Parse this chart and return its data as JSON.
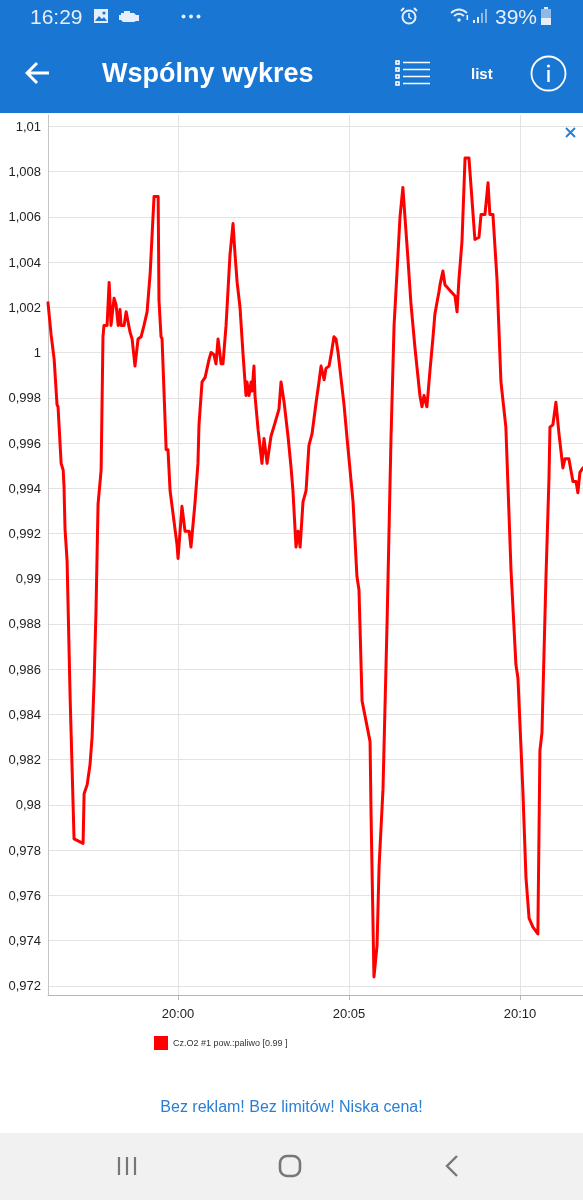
{
  "chart_data": {
    "type": "line",
    "title": "Wspólny wykres",
    "annotations": [
      "16:29",
      "39%",
      "list",
      "Bez reklam! Bez limitów! Niska cena!"
    ],
    "x": [
      19.9366,
      19.9381,
      19.9396,
      19.941,
      19.9415,
      19.943,
      19.944,
      19.9444,
      19.9449,
      19.9459,
      19.9474,
      19.9493,
      19.9537,
      19.9542,
      19.9557,
      19.9571,
      19.9581,
      19.9591,
      19.96,
      19.961,
      19.9625,
      19.9634,
      19.9639,
      19.9654,
      19.9664,
      19.9673,
      19.9688,
      19.9698,
      19.9708,
      19.9717,
      19.9722,
      19.9737,
      19.9747,
      19.9766,
      19.9776,
      19.979,
      19.9805,
      19.982,
      19.9834,
      19.9849,
      19.9864,
      19.9883,
      19.9903,
      19.9907,
      19.9917,
      19.9922,
      19.9942,
      19.9951,
      19.9961,
      19.9995,
      20.0,
      20.0019,
      20.0034,
      20.0054,
      20.0063,
      20.0083,
      20.0097,
      20.0102,
      20.0117,
      20.0132,
      20.0151,
      20.0161,
      20.0175,
      20.0185,
      20.0195,
      20.021,
      20.0219,
      20.0234,
      20.0253,
      20.0268,
      20.0278,
      20.0288,
      20.0302,
      20.0317,
      20.0331,
      20.0336,
      20.0346,
      20.0356,
      20.0361,
      20.037,
      20.0375,
      20.039,
      20.0409,
      20.0419,
      20.0434,
      20.0453,
      20.0473,
      20.0492,
      20.0502,
      20.0517,
      20.0536,
      20.0551,
      20.056,
      20.0575,
      20.0585,
      20.0595,
      20.0609,
      20.0624,
      20.0638,
      20.0653,
      20.0673,
      20.0687,
      20.0697,
      20.0712,
      20.0721,
      20.0736,
      20.0746,
      20.076,
      20.077,
      20.078,
      20.0809,
      20.0824,
      20.0853,
      20.0872,
      20.0882,
      20.0897,
      20.0936,
      20.0941,
      20.0955,
      20.097,
      20.098,
      20.0999,
      20.1019,
      20.1038,
      20.1053,
      20.1067,
      20.1082,
      20.1096,
      20.1106,
      20.1121,
      20.1135,
      20.1155,
      20.1179,
      20.1189,
      20.1199,
      20.1213,
      20.1228,
      20.1243,
      20.1252,
      20.1272,
      20.1277,
      20.1291,
      20.1301,
      20.133,
      20.135,
      20.136,
      20.1369,
      20.1384,
      20.1399,
      20.1418,
      20.1447,
      20.1467,
      20.1477,
      20.1496,
      20.1511,
      20.152,
      20.1535,
      20.1555,
      20.1574,
      20.1598,
      20.1623,
      20.1647,
      20.1657,
      20.1681,
      20.1696,
      20.1711,
      20.173,
      20.1754,
      20.1764,
      20.1774,
      20.1793,
      20.1808,
      20.1813,
      20.1827,
      20.1842,
      20.1857,
      20.1876,
      20.1886,
      20.1905,
      20.1925,
      20.194,
      20.1949,
      20.1959,
      20.1974
    ],
    "series": [
      {
        "name": "Cz.O2 #1 pow.:paliwo [0.99 ]",
        "color": "#ff0000",
        "values": [
          1.0022,
          1.0008,
          0.9997,
          0.9977,
          0.9976,
          0.9951,
          0.9948,
          0.9941,
          0.9922,
          0.9908,
          0.9847,
          0.9785,
          0.9783,
          0.9805,
          0.9809,
          0.9818,
          0.983,
          0.9855,
          0.9886,
          0.9933,
          0.9948,
          1.0007,
          1.0012,
          1.0012,
          1.0031,
          1.0012,
          1.0024,
          1.0021,
          1.0012,
          1.0019,
          1.0012,
          1.0012,
          1.0018,
          1.0009,
          1.0006,
          0.9994,
          1.0006,
          1.0007,
          1.0012,
          1.0018,
          1.0035,
          1.0069,
          1.0069,
          1.0023,
          1.0007,
          1.0006,
          0.9957,
          0.9957,
          0.9939,
          0.9915,
          0.9909,
          0.9932,
          0.9921,
          0.9921,
          0.9914,
          0.9934,
          0.9951,
          0.9968,
          0.9987,
          0.9989,
          0.9997,
          1.0,
          0.9999,
          0.9995,
          1.0006,
          0.9995,
          0.9995,
          1.0012,
          1.0043,
          1.0057,
          1.0043,
          1.0031,
          1.002,
          0.9999,
          0.9981,
          0.9987,
          0.9981,
          0.9987,
          0.9983,
          0.9994,
          0.9981,
          0.9966,
          0.9951,
          0.9962,
          0.9951,
          0.9963,
          0.9969,
          0.9975,
          0.9987,
          0.9978,
          0.9963,
          0.9949,
          0.9939,
          0.9914,
          0.9921,
          0.9914,
          0.9934,
          0.9939,
          0.9959,
          0.9964,
          0.9978,
          0.9987,
          0.9994,
          0.9988,
          0.9993,
          0.9994,
          0.9999,
          1.0007,
          1.0006,
          1.0,
          0.9977,
          0.9962,
          0.9934,
          0.9901,
          0.9895,
          0.9846,
          0.9828,
          0.9795,
          0.9724,
          0.9738,
          0.9773,
          0.9807,
          0.9881,
          0.9962,
          1.0012,
          1.0035,
          1.006,
          1.0073,
          1.006,
          1.0041,
          1.0022,
          1.0002,
          0.9981,
          0.9976,
          0.9981,
          0.9976,
          0.9992,
          1.0007,
          1.0017,
          1.0027,
          1.003,
          1.0036,
          1.003,
          1.0027,
          1.0025,
          1.0018,
          1.0032,
          1.0049,
          1.0086,
          1.0086,
          1.005,
          1.0051,
          1.0061,
          1.0061,
          1.0075,
          1.0061,
          1.0061,
          1.0032,
          0.9987,
          0.9967,
          0.9904,
          0.9862,
          0.9856,
          0.9806,
          0.9768,
          0.975,
          0.9746,
          0.9743,
          0.9824,
          0.9832,
          0.9899,
          0.9944,
          0.9967,
          0.9968,
          0.9978,
          0.9964,
          0.9949,
          0.9953,
          0.9953,
          0.9943,
          0.9943,
          0.9938,
          0.9947,
          0.9949
        ]
      }
    ],
    "xlim": [
      19.9366,
      20.1974
    ],
    "ylim": [
      0.9716,
      1.0105
    ],
    "xticks": [
      {
        "value": 20,
        "label": "20:00"
      },
      {
        "value": 20.0833,
        "label": "20:05"
      },
      {
        "value": 20.1667,
        "label": "20:10"
      }
    ],
    "yticks": [
      {
        "value": 0.972,
        "label": "0,972"
      },
      {
        "value": 0.974,
        "label": "0,974"
      },
      {
        "value": 0.976,
        "label": "0,976"
      },
      {
        "value": 0.978,
        "label": "0,978"
      },
      {
        "value": 0.98,
        "label": "0,98"
      },
      {
        "value": 0.982,
        "label": "0,982"
      },
      {
        "value": 0.984,
        "label": "0,984"
      },
      {
        "value": 0.986,
        "label": "0,986"
      },
      {
        "value": 0.988,
        "label": "0,988"
      },
      {
        "value": 0.99,
        "label": "0,99"
      },
      {
        "value": 0.992,
        "label": "0,992"
      },
      {
        "value": 0.994,
        "label": "0,994"
      },
      {
        "value": 0.996,
        "label": "0,996"
      },
      {
        "value": 0.998,
        "label": "0,998"
      },
      1,
      {
        "value": 1.002,
        "label": "1,002"
      },
      {
        "value": 1.004,
        "label": "1,004"
      },
      {
        "value": 1.006,
        "label": "1,006"
      },
      {
        "value": 1.008,
        "label": "1,008"
      },
      {
        "value": 1.01,
        "label": "1,01"
      }
    ],
    "grid": true,
    "legend": "bottom",
    "line_style": "solid"
  }
}
